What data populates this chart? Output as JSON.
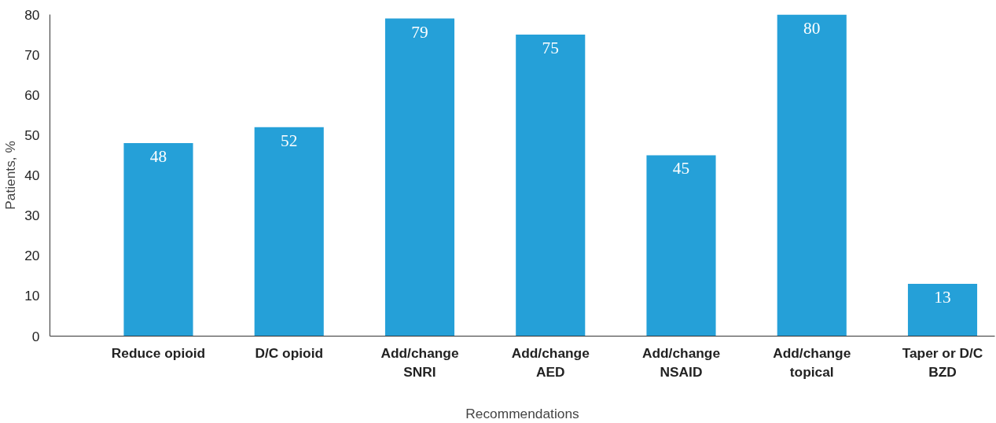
{
  "chart_data": {
    "type": "bar",
    "xlabel": "Recommendations",
    "ylabel": "Patients, %",
    "categories": [
      "Reduce opioid",
      "D/C opioid",
      "Add/change\nSNRI",
      "Add/change\nAED",
      "Add/change\nNSAID",
      "Add/change\ntopical",
      "Taper or D/C\nBZD"
    ],
    "values": [
      48,
      52,
      79,
      75,
      45,
      80,
      13
    ],
    "color": "#25a0d8",
    "ylim": [
      0,
      80
    ],
    "yticks": [
      0,
      10,
      20,
      30,
      40,
      50,
      60,
      70,
      80
    ],
    "grid": false,
    "data_labels": true
  }
}
